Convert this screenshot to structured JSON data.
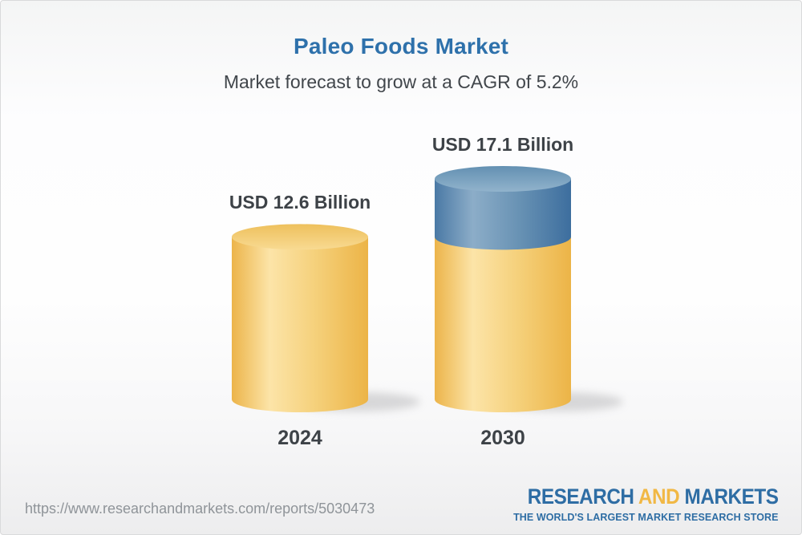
{
  "header": {
    "title": "Paleo Foods Market",
    "subtitle": "Market forecast to grow at a CAGR of 5.2%"
  },
  "chart_data": {
    "type": "bar",
    "variant": "3d-cylinder",
    "title": "Paleo Foods Market",
    "subtitle": "Market forecast to grow at a CAGR of 5.2%",
    "cagr": "5.2%",
    "unit": "USD Billion",
    "categories": [
      "2024",
      "2030"
    ],
    "values": [
      12.6,
      17.1
    ],
    "bars": [
      {
        "year": "2024",
        "label": "USD 12.6 Billion",
        "value": 12.6,
        "segments": [
          {
            "value": 12.6,
            "color": "gold"
          }
        ]
      },
      {
        "year": "2030",
        "label": "USD 17.1 Billion",
        "value": 17.1,
        "segments": [
          {
            "value": 12.6,
            "color": "gold"
          },
          {
            "value": 4.5,
            "color": "blue"
          }
        ]
      }
    ],
    "colors": {
      "gold": "#f0c05e",
      "blue": "#5c89ae",
      "label_text": "#3d4247",
      "title_text": "#2e71ab"
    },
    "legend": "none",
    "grid": false
  },
  "footer": {
    "url": "https://www.researchandmarkets.com/reports/5030473",
    "logo": {
      "part1": "RESEARCH",
      "part2": "AND",
      "part3": "MARKETS",
      "tagline": "THE WORLD'S LARGEST MARKET RESEARCH STORE"
    }
  }
}
